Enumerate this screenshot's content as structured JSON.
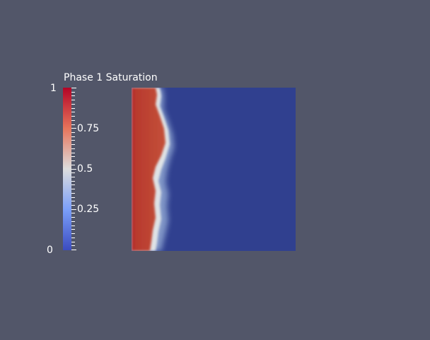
{
  "render_view": {
    "background": "#525669"
  },
  "scalar_bar": {
    "title": "Phase 1 Saturation",
    "labels": {
      "max": "1",
      "q75": "0.75",
      "q50": "0.5",
      "q25": "0.25",
      "min": "0"
    },
    "colormap": [
      "#b40426",
      "#e7745b",
      "#dddddd",
      "#7b9ff9",
      "#3b4cc0"
    ]
  },
  "field": {
    "high_color": "#b4352b",
    "low_color": "#30408f"
  }
}
